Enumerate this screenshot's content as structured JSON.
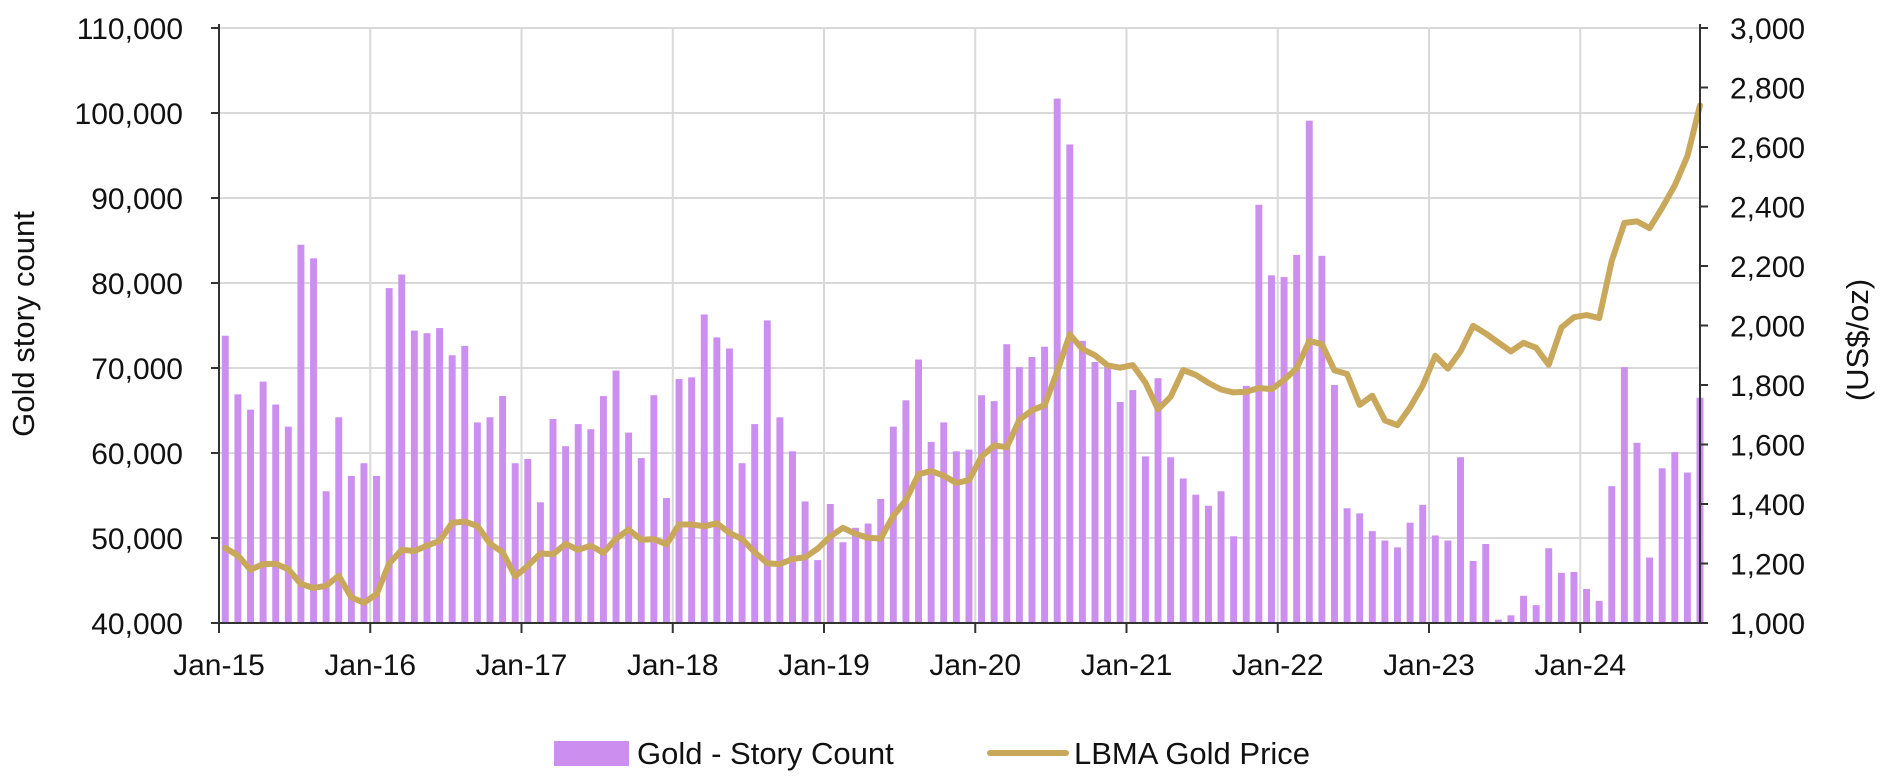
{
  "chart_data": {
    "type": "bar",
    "title": "",
    "ylabel": "Gold story count",
    "y2label": "(US$/oz)",
    "xlabel": "",
    "ylim": [
      40000,
      110000
    ],
    "y2lim": [
      1000,
      3000
    ],
    "y_ticks": [
      "40,000",
      "50,000",
      "60,000",
      "70,000",
      "80,000",
      "90,000",
      "100,000",
      "110,000"
    ],
    "y2_ticks": [
      "1,000",
      "1,200",
      "1,400",
      "1,600",
      "1,800",
      "2,000",
      "2,200",
      "2,400",
      "2,600",
      "2,800",
      "3,000"
    ],
    "x_ticks": [
      "Jan-15",
      "Jan-16",
      "Jan-17",
      "Jan-18",
      "Jan-19",
      "Jan-20",
      "Jan-21",
      "Jan-22",
      "Jan-23",
      "Jan-24"
    ],
    "grid": true,
    "legend_position": "bottom-center",
    "x_range": [
      "Jan-15",
      "Oct-24"
    ],
    "x": [
      "Jan-15",
      "Feb-15",
      "Mar-15",
      "Apr-15",
      "May-15",
      "Jun-15",
      "Jul-15",
      "Aug-15",
      "Sep-15",
      "Oct-15",
      "Nov-15",
      "Dec-15",
      "Jan-16",
      "Feb-16",
      "Mar-16",
      "Apr-16",
      "May-16",
      "Jun-16",
      "Jul-16",
      "Aug-16",
      "Sep-16",
      "Oct-16",
      "Nov-16",
      "Dec-16",
      "Jan-17",
      "Feb-17",
      "Mar-17",
      "Apr-17",
      "May-17",
      "Jun-17",
      "Jul-17",
      "Aug-17",
      "Sep-17",
      "Oct-17",
      "Nov-17",
      "Dec-17",
      "Jan-18",
      "Feb-18",
      "Mar-18",
      "Apr-18",
      "May-18",
      "Jun-18",
      "Jul-18",
      "Aug-18",
      "Sep-18",
      "Oct-18",
      "Nov-18",
      "Dec-18",
      "Jan-19",
      "Feb-19",
      "Mar-19",
      "Apr-19",
      "May-19",
      "Jun-19",
      "Jul-19",
      "Aug-19",
      "Sep-19",
      "Oct-19",
      "Nov-19",
      "Dec-19",
      "Jan-20",
      "Feb-20",
      "Mar-20",
      "Apr-20",
      "May-20",
      "Jun-20",
      "Jul-20",
      "Aug-20",
      "Sep-20",
      "Oct-20",
      "Nov-20",
      "Dec-20",
      "Jan-21",
      "Feb-21",
      "Mar-21",
      "Apr-21",
      "May-21",
      "Jun-21",
      "Jul-21",
      "Aug-21",
      "Sep-21",
      "Oct-21",
      "Nov-21",
      "Dec-21",
      "Jan-22",
      "Feb-22",
      "Mar-22",
      "Apr-22",
      "May-22",
      "Jun-22",
      "Jul-22",
      "Aug-22",
      "Sep-22",
      "Oct-22",
      "Nov-22",
      "Dec-22",
      "Jan-23",
      "Feb-23",
      "Mar-23",
      "Apr-23",
      "May-23",
      "Jun-23",
      "Jul-23",
      "Aug-23",
      "Sep-23",
      "Oct-23",
      "Nov-23",
      "Dec-23",
      "Jan-24",
      "Feb-24",
      "Mar-24",
      "Apr-24",
      "May-24",
      "Jun-24",
      "Jul-24",
      "Aug-24",
      "Sep-24",
      "Oct-24"
    ],
    "series": [
      {
        "name": "Gold - Story Count",
        "type": "bar",
        "axis": "left",
        "color": "#cc8ff0",
        "values": [
          73800,
          66900,
          65100,
          68400,
          65700,
          63100,
          84500,
          82900,
          55500,
          64200,
          57300,
          58800,
          57300,
          79400,
          81000,
          74400,
          74100,
          74700,
          71500,
          72600,
          63600,
          64200,
          66700,
          58800,
          59300,
          54200,
          64000,
          60800,
          63400,
          62800,
          66700,
          69700,
          62400,
          59400,
          66800,
          54700,
          68700,
          68900,
          76300,
          73600,
          72300,
          58800,
          63400,
          75600,
          64200,
          60200,
          54300,
          47400,
          54000,
          49500,
          51200,
          51700,
          54600,
          63100,
          66200,
          71000,
          61300,
          63600,
          60200,
          60400,
          66800,
          66100,
          72800,
          70100,
          71300,
          72500,
          101700,
          96300,
          73200,
          70700,
          70600,
          66000,
          67400,
          59600,
          68800,
          59500,
          57000,
          55100,
          53800,
          55500,
          50200,
          67900,
          89200,
          80900,
          80700,
          83300,
          99100,
          83200,
          68000,
          53500,
          52900,
          50800,
          49700,
          48900,
          51800,
          53900,
          50300,
          49700,
          59500,
          47300,
          49300,
          40400,
          40900,
          43200,
          42100,
          48800,
          45900,
          46000,
          44000,
          42600,
          56100,
          70100,
          61200,
          47700,
          58200,
          60100,
          57700,
          66500
        ]
      },
      {
        "name": "LBMA Gold Price",
        "type": "line",
        "axis": "right",
        "color": "#c9a85c",
        "values": [
          1252,
          1227,
          1179,
          1198,
          1199,
          1181,
          1131,
          1118,
          1125,
          1159,
          1086,
          1068,
          1097,
          1200,
          1246,
          1242,
          1260,
          1276,
          1337,
          1341,
          1326,
          1267,
          1238,
          1157,
          1192,
          1234,
          1231,
          1266,
          1246,
          1260,
          1236,
          1283,
          1314,
          1280,
          1282,
          1265,
          1331,
          1331,
          1325,
          1335,
          1303,
          1282,
          1238,
          1201,
          1198,
          1215,
          1221,
          1250,
          1291,
          1320,
          1300,
          1286,
          1284,
          1360,
          1413,
          1500,
          1511,
          1495,
          1471,
          1480,
          1560,
          1597,
          1591,
          1683,
          1715,
          1732,
          1845,
          1970,
          1921,
          1900,
          1866,
          1858,
          1867,
          1808,
          1718,
          1760,
          1850,
          1834,
          1807,
          1785,
          1775,
          1777,
          1790,
          1786,
          1817,
          1856,
          1948,
          1937,
          1849,
          1837,
          1733,
          1764,
          1681,
          1665,
          1725,
          1798,
          1898,
          1855,
          1913,
          1999,
          1973,
          1943,
          1913,
          1942,
          1925,
          1868,
          1993,
          2028,
          2035,
          2025,
          2218,
          2345,
          2350,
          2327,
          2396,
          2471,
          2569,
          2740
        ]
      }
    ]
  },
  "legend": {
    "items": [
      {
        "label": "Gold - Story Count",
        "color": "#cc8ff0",
        "icon": "bar-swatch"
      },
      {
        "label": "LBMA Gold Price",
        "color": "#c9a85c",
        "icon": "line-swatch"
      }
    ]
  }
}
